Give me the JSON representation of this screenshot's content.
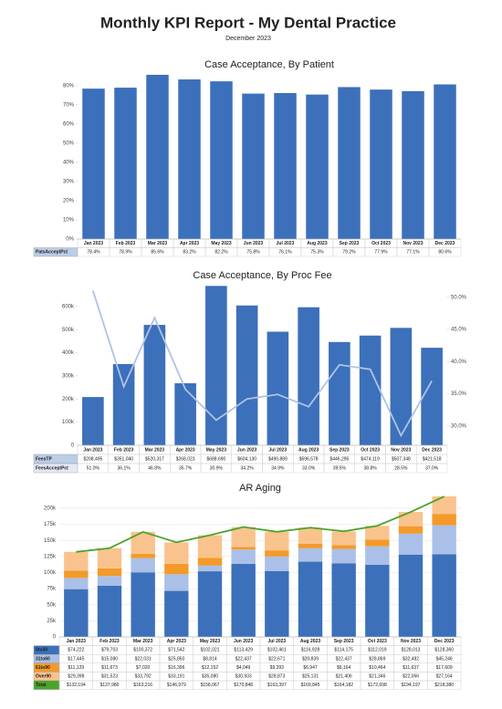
{
  "header": {
    "title": "Monthly KPI Report - My Dental Practice",
    "subtitle": "December 2023"
  },
  "chart_data": [
    {
      "type": "bar",
      "title": "Case Acceptance, By Patient",
      "categories": [
        "Jan 2023",
        "Feb 2023",
        "Mar 2023",
        "Apr 2023",
        "May 2023",
        "Jun 2023",
        "Jul 2023",
        "Aug 2023",
        "Sep 2023",
        "Oct 2023",
        "Nov 2023",
        "Dec 2023"
      ],
      "series": [
        {
          "name": "PatsAcceptPct",
          "color": "#3c70ba",
          "values": [
            78.4,
            78.9,
            85.6,
            83.2,
            82.2,
            75.8,
            76.1,
            75.3,
            79.2,
            77.9,
            77.1,
            80.6
          ],
          "value_labels": [
            "78.4%",
            "78.9%",
            "85.6%",
            "83.2%",
            "82.2%",
            "75.8%",
            "76.1%",
            "75.3%",
            "79.2%",
            "77.9%",
            "77.1%",
            "80.6%"
          ]
        }
      ],
      "ylim": [
        0,
        87.5
      ],
      "yticks": [
        {
          "value": 0,
          "label": "0%"
        },
        {
          "value": 10,
          "label": "10%"
        },
        {
          "value": 20,
          "label": "20%"
        },
        {
          "value": 30,
          "label": "30%"
        },
        {
          "value": 40,
          "label": "40%"
        },
        {
          "value": 50,
          "label": "50%"
        },
        {
          "value": 60,
          "label": "60%"
        },
        {
          "value": 70,
          "label": "70%"
        },
        {
          "value": 80,
          "label": "80%"
        }
      ],
      "grid": false
    },
    {
      "type": "bar",
      "title": "Case Acceptance, By Proc Fee",
      "categories": [
        "Jan 2023",
        "Feb 2023",
        "Mar 2023",
        "Apr 2023",
        "May 2023",
        "Jun 2023",
        "Jul 2023",
        "Aug 2023",
        "Sep 2023",
        "Oct 2023",
        "Nov 2023",
        "Dec 2023"
      ],
      "series": [
        {
          "name": "FeesTP",
          "color": "#3c70ba",
          "values": [
            208495,
            351040,
            520317,
            268023,
            688690,
            604130,
            490889,
            596578,
            446295,
            474119,
            507348,
            421518
          ],
          "value_labels": [
            "$208,495",
            "$351,040",
            "$520,317",
            "$268,023",
            "$688,690",
            "$604,130",
            "$490,889",
            "$596,578",
            "$446,295",
            "$474,119",
            "$507,348",
            "$421,518"
          ]
        },
        {
          "name": "FeesAcceptPct",
          "type": "line",
          "axis": "y2",
          "color": "#aec3e6",
          "values": [
            51.0,
            36.1,
            46.8,
            35.7,
            30.9,
            34.2,
            34.9,
            33.0,
            39.5,
            38.8,
            28.5,
            37.0
          ],
          "value_labels": [
            "51.0%",
            "36.1%",
            "46.8%",
            "35.7%",
            "30.9%",
            "34.2%",
            "34.9%",
            "33.0%",
            "39.5%",
            "38.8%",
            "28.5%",
            "37.0%"
          ]
        }
      ],
      "ylim": [
        0,
        690000
      ],
      "yticks": [
        0,
        {
          "value": 100000,
          "label": "100k"
        },
        {
          "value": 200000,
          "label": "200k"
        },
        {
          "value": 300000,
          "label": "300k"
        },
        {
          "value": 400000,
          "label": "400k"
        },
        {
          "value": 500000,
          "label": "500k"
        },
        {
          "value": 600000,
          "label": "600k"
        }
      ],
      "y2lim": [
        27,
        51.8
      ],
      "y2ticks": [
        {
          "value": 30,
          "label": "30.0%"
        },
        {
          "value": 35,
          "label": "35.0%"
        },
        {
          "value": 40,
          "label": "40.0%"
        },
        {
          "value": 45,
          "label": "45.0%"
        },
        {
          "value": 50,
          "label": "50.0%"
        }
      ],
      "grid": false
    },
    {
      "type": "stacked_bar",
      "title": "AR Aging",
      "categories": [
        "Jan 2023",
        "Feb 2023",
        "Mar 2023",
        "Apr 2023",
        "May 2023",
        "Jun 2023",
        "Jul 2023",
        "Aug 2023",
        "Sep 2023",
        "Oct 2023",
        "Nov 2023",
        "Dec 2023"
      ],
      "series": [
        {
          "name": "0to30",
          "color": "#3c70ba",
          "values": [
            74222,
            79703,
            100372,
            71542,
            102021,
            113429,
            102461,
            116928,
            114175,
            112019,
            128013,
            128360
          ],
          "value_labels": [
            "$74,222",
            "$79,703",
            "$100,372",
            "$71,542",
            "$102,021",
            "$113,429",
            "$102,461",
            "$116,928",
            "$114,175",
            "$112,019",
            "$128,013",
            "$128,360"
          ]
        },
        {
          "name": "31to60",
          "color": "#aac0e8",
          "values": [
            17445,
            15080,
            22031,
            25850,
            8814,
            22437,
            22671,
            20839,
            22437,
            28869,
            32482,
            45246
          ],
          "value_labels": [
            "$17,445",
            "$15,080",
            "$22,031",
            "$25,850",
            "$8,814",
            "$22,437",
            "$22,671",
            "$20,839",
            "$22,437",
            "$28,869",
            "$32,482",
            "$45,246"
          ]
        },
        {
          "name": "61to90",
          "color": "#f39a2a",
          "values": [
            11129,
            11673,
            7020,
            16396,
            12152,
            4049,
            9393,
            6947,
            6164,
            10464,
            11637,
            17609
          ],
          "value_labels": [
            "$11,129",
            "$11,673",
            "$7,020",
            "$16,396",
            "$12,152",
            "$4,049",
            "$9,393",
            "$6,947",
            "$6,164",
            "$10,464",
            "$11,637",
            "$17,609"
          ]
        },
        {
          "name": "Over90",
          "color": "#f9c38e",
          "values": [
            29398,
            31523,
            33792,
            33191,
            35080,
            30933,
            28873,
            25131,
            21406,
            21346,
            22066,
            27164
          ],
          "value_labels": [
            "$29,398",
            "$31,523",
            "$33,792",
            "$33,191",
            "$35,080",
            "$30,933",
            "$28,873",
            "$25,131",
            "$21,406",
            "$21,346",
            "$22,066",
            "$27,164"
          ]
        },
        {
          "name": "Total",
          "type": "line",
          "color": "#4ca32a",
          "values": [
            132194,
            137980,
            163216,
            146979,
            158067,
            170848,
            163397,
            169845,
            164182,
            172698,
            194197,
            218380
          ],
          "value_labels": [
            "$132,194",
            "$137,980",
            "$163,216",
            "$146,979",
            "$158,067",
            "$170,848",
            "$163,397",
            "$169,845",
            "$164,182",
            "$172,698",
            "$194,197",
            "$218,380"
          ]
        }
      ],
      "ylim": [
        0,
        217000
      ],
      "yticks": [
        0,
        {
          "value": 25000,
          "label": "25k"
        },
        {
          "value": 50000,
          "label": "50k"
        },
        {
          "value": 75000,
          "label": "75k"
        },
        {
          "value": 100000,
          "label": "100k"
        },
        {
          "value": 125000,
          "label": "125k"
        },
        {
          "value": 150000,
          "label": "150k"
        },
        {
          "value": 175000,
          "label": "175k"
        },
        {
          "value": 200000,
          "label": "200k"
        }
      ],
      "grid": true
    }
  ]
}
